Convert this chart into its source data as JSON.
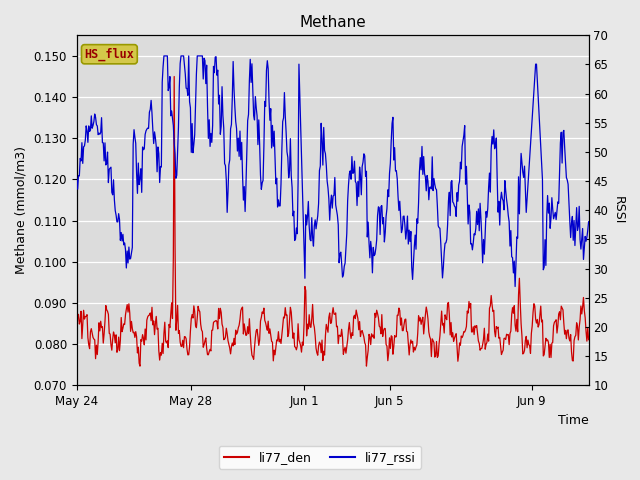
{
  "title": "Methane",
  "xlabel": "Time",
  "ylabel_left": "Methane (mmol/m3)",
  "ylabel_right": "RSSI",
  "ylim_left": [
    0.07,
    0.155
  ],
  "ylim_right": [
    10,
    70
  ],
  "yticks_left": [
    0.07,
    0.08,
    0.09,
    0.1,
    0.11,
    0.12,
    0.13,
    0.14,
    0.15
  ],
  "yticks_right": [
    10,
    15,
    20,
    25,
    30,
    35,
    40,
    45,
    50,
    55,
    60,
    65,
    70
  ],
  "xtick_positions": [
    0,
    4,
    8,
    11,
    16
  ],
  "xtick_labels": [
    "May 24",
    "May 28",
    "Jun 1",
    "Jun 5",
    "Jun 9"
  ],
  "color_red": "#cc0000",
  "color_blue": "#0000cc",
  "fig_bg": "#e8e8e8",
  "plot_bg": "#dcdcdc",
  "legend_label_red": "li77_den",
  "legend_label_blue": "li77_rssi",
  "annotation_text": "HS_flux",
  "annotation_bg": "#d4c84a",
  "annotation_border": "#999900",
  "figsize": [
    6.4,
    4.8
  ],
  "dpi": 100
}
